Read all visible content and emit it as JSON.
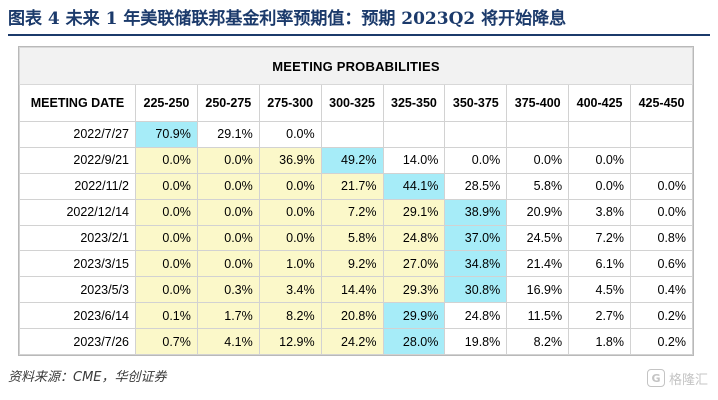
{
  "figure": {
    "title": "图表 4    未来 1 年美联储联邦基金利率预期值：预期 2023Q2 将开始降息",
    "source": "资料来源：CME，华创证券",
    "watermark": "格隆汇"
  },
  "table": {
    "banner": "MEETING PROBABILITIES",
    "date_header": "MEETING DATE",
    "columns": [
      "225-250",
      "250-275",
      "275-300",
      "300-325",
      "325-350",
      "350-375",
      "375-400",
      "400-425",
      "425-450"
    ],
    "rows": [
      {
        "date": "2022/7/27",
        "values": [
          "70.9%",
          "29.1%",
          "0.0%",
          "",
          "",
          "",
          "",
          "",
          ""
        ],
        "highlight": [
          "c",
          "",
          "",
          "",
          "",
          "",
          "",
          "",
          ""
        ]
      },
      {
        "date": "2022/9/21",
        "values": [
          "0.0%",
          "0.0%",
          "36.9%",
          "49.2%",
          "14.0%",
          "0.0%",
          "0.0%",
          "0.0%",
          ""
        ],
        "highlight": [
          "y",
          "y",
          "y",
          "c",
          "",
          "",
          "",
          "",
          ""
        ]
      },
      {
        "date": "2022/11/2",
        "values": [
          "0.0%",
          "0.0%",
          "0.0%",
          "21.7%",
          "44.1%",
          "28.5%",
          "5.8%",
          "0.0%",
          "0.0%"
        ],
        "highlight": [
          "y",
          "y",
          "y",
          "y",
          "c",
          "",
          "",
          "",
          ""
        ]
      },
      {
        "date": "2022/12/14",
        "values": [
          "0.0%",
          "0.0%",
          "0.0%",
          "7.2%",
          "29.1%",
          "38.9%",
          "20.9%",
          "3.8%",
          "0.0%"
        ],
        "highlight": [
          "y",
          "y",
          "y",
          "y",
          "y",
          "c",
          "",
          "",
          ""
        ]
      },
      {
        "date": "2023/2/1",
        "values": [
          "0.0%",
          "0.0%",
          "0.0%",
          "5.8%",
          "24.8%",
          "37.0%",
          "24.5%",
          "7.2%",
          "0.8%"
        ],
        "highlight": [
          "y",
          "y",
          "y",
          "y",
          "y",
          "c",
          "",
          "",
          ""
        ]
      },
      {
        "date": "2023/3/15",
        "values": [
          "0.0%",
          "0.0%",
          "1.0%",
          "9.2%",
          "27.0%",
          "34.8%",
          "21.4%",
          "6.1%",
          "0.6%"
        ],
        "highlight": [
          "y",
          "y",
          "y",
          "y",
          "y",
          "c",
          "",
          "",
          ""
        ]
      },
      {
        "date": "2023/5/3",
        "values": [
          "0.0%",
          "0.3%",
          "3.4%",
          "14.4%",
          "29.3%",
          "30.8%",
          "16.9%",
          "4.5%",
          "0.4%"
        ],
        "highlight": [
          "y",
          "y",
          "y",
          "y",
          "y",
          "c",
          "",
          "",
          ""
        ]
      },
      {
        "date": "2023/6/14",
        "values": [
          "0.1%",
          "1.7%",
          "8.2%",
          "20.8%",
          "29.9%",
          "24.8%",
          "11.5%",
          "2.7%",
          "0.2%"
        ],
        "highlight": [
          "y",
          "y",
          "y",
          "y",
          "c",
          "",
          "",
          "",
          ""
        ]
      },
      {
        "date": "2023/7/26",
        "values": [
          "0.7%",
          "4.1%",
          "12.9%",
          "24.2%",
          "28.0%",
          "19.8%",
          "8.2%",
          "1.8%",
          "0.2%"
        ],
        "highlight": [
          "y",
          "y",
          "y",
          "y",
          "c",
          "",
          "",
          "",
          ""
        ]
      }
    ]
  },
  "colors": {
    "title": "#1b3a6b",
    "highlight_yellow": "#fbf8c9",
    "highlight_cyan": "#a6ecf8"
  }
}
